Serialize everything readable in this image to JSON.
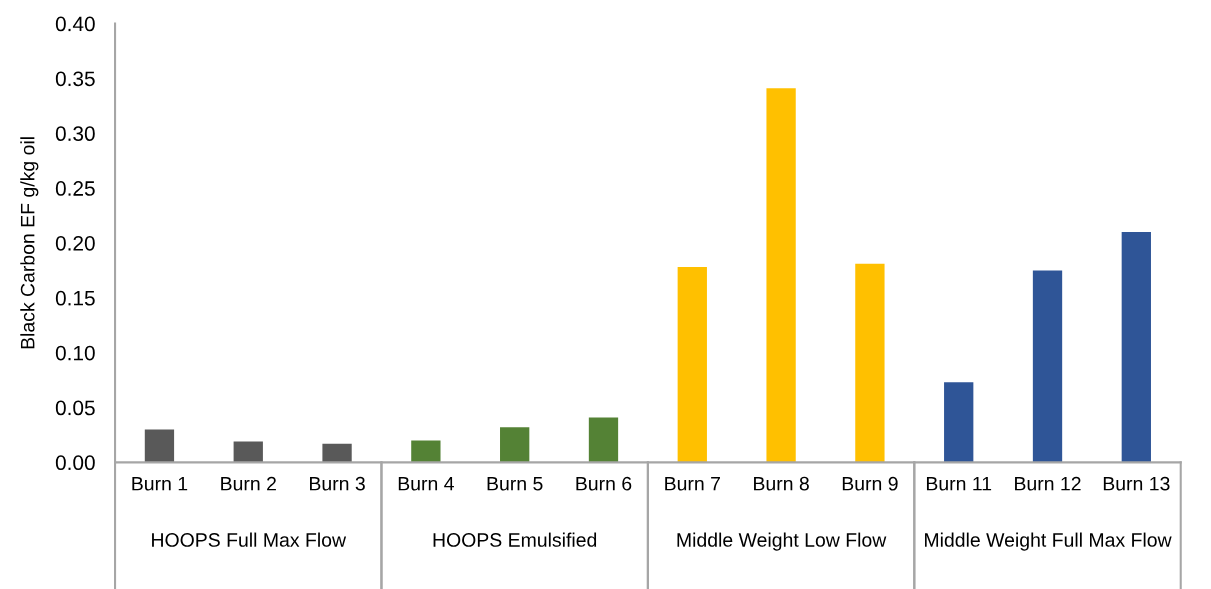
{
  "chart_data": {
    "type": "bar",
    "ylabel": "Black Carbon EF g/kg oil",
    "categories": [
      "Burn 1",
      "Burn 2",
      "Burn 3",
      "Burn 4",
      "Burn 5",
      "Burn 6",
      "Burn 7",
      "Burn 8",
      "Burn 9",
      "Burn 11",
      "Burn 12",
      "Burn 13"
    ],
    "values": [
      0.03,
      0.019,
      0.017,
      0.02,
      0.032,
      0.041,
      0.178,
      0.341,
      0.181,
      0.073,
      0.175,
      0.21
    ],
    "colors": [
      "#595959",
      "#595959",
      "#595959",
      "#548235",
      "#548235",
      "#548235",
      "#ffc000",
      "#ffc000",
      "#ffc000",
      "#2f5597",
      "#2f5597",
      "#2f5597"
    ],
    "annotations": [
      "HOOPS Full Max Flow",
      "HOOPS Emulsified",
      "Middle Weight Low Flow",
      "Middle Weight Full Max Flow"
    ],
    "ylim": [
      0,
      0.4
    ],
    "yticks": [
      {
        "value": 0,
        "label": "0.00"
      },
      {
        "value": 0.05,
        "label": "0.05"
      },
      {
        "value": 0.1,
        "label": "0.10"
      },
      {
        "value": 0.15,
        "label": "0.15"
      },
      {
        "value": 0.2,
        "label": "0.20"
      },
      {
        "value": 0.25,
        "label": "0.25"
      },
      {
        "value": 0.3,
        "label": "0.30"
      },
      {
        "value": 0.35,
        "label": "0.35"
      },
      {
        "value": 0.4,
        "label": "0.40"
      }
    ],
    "grid": false,
    "legend": false
  }
}
